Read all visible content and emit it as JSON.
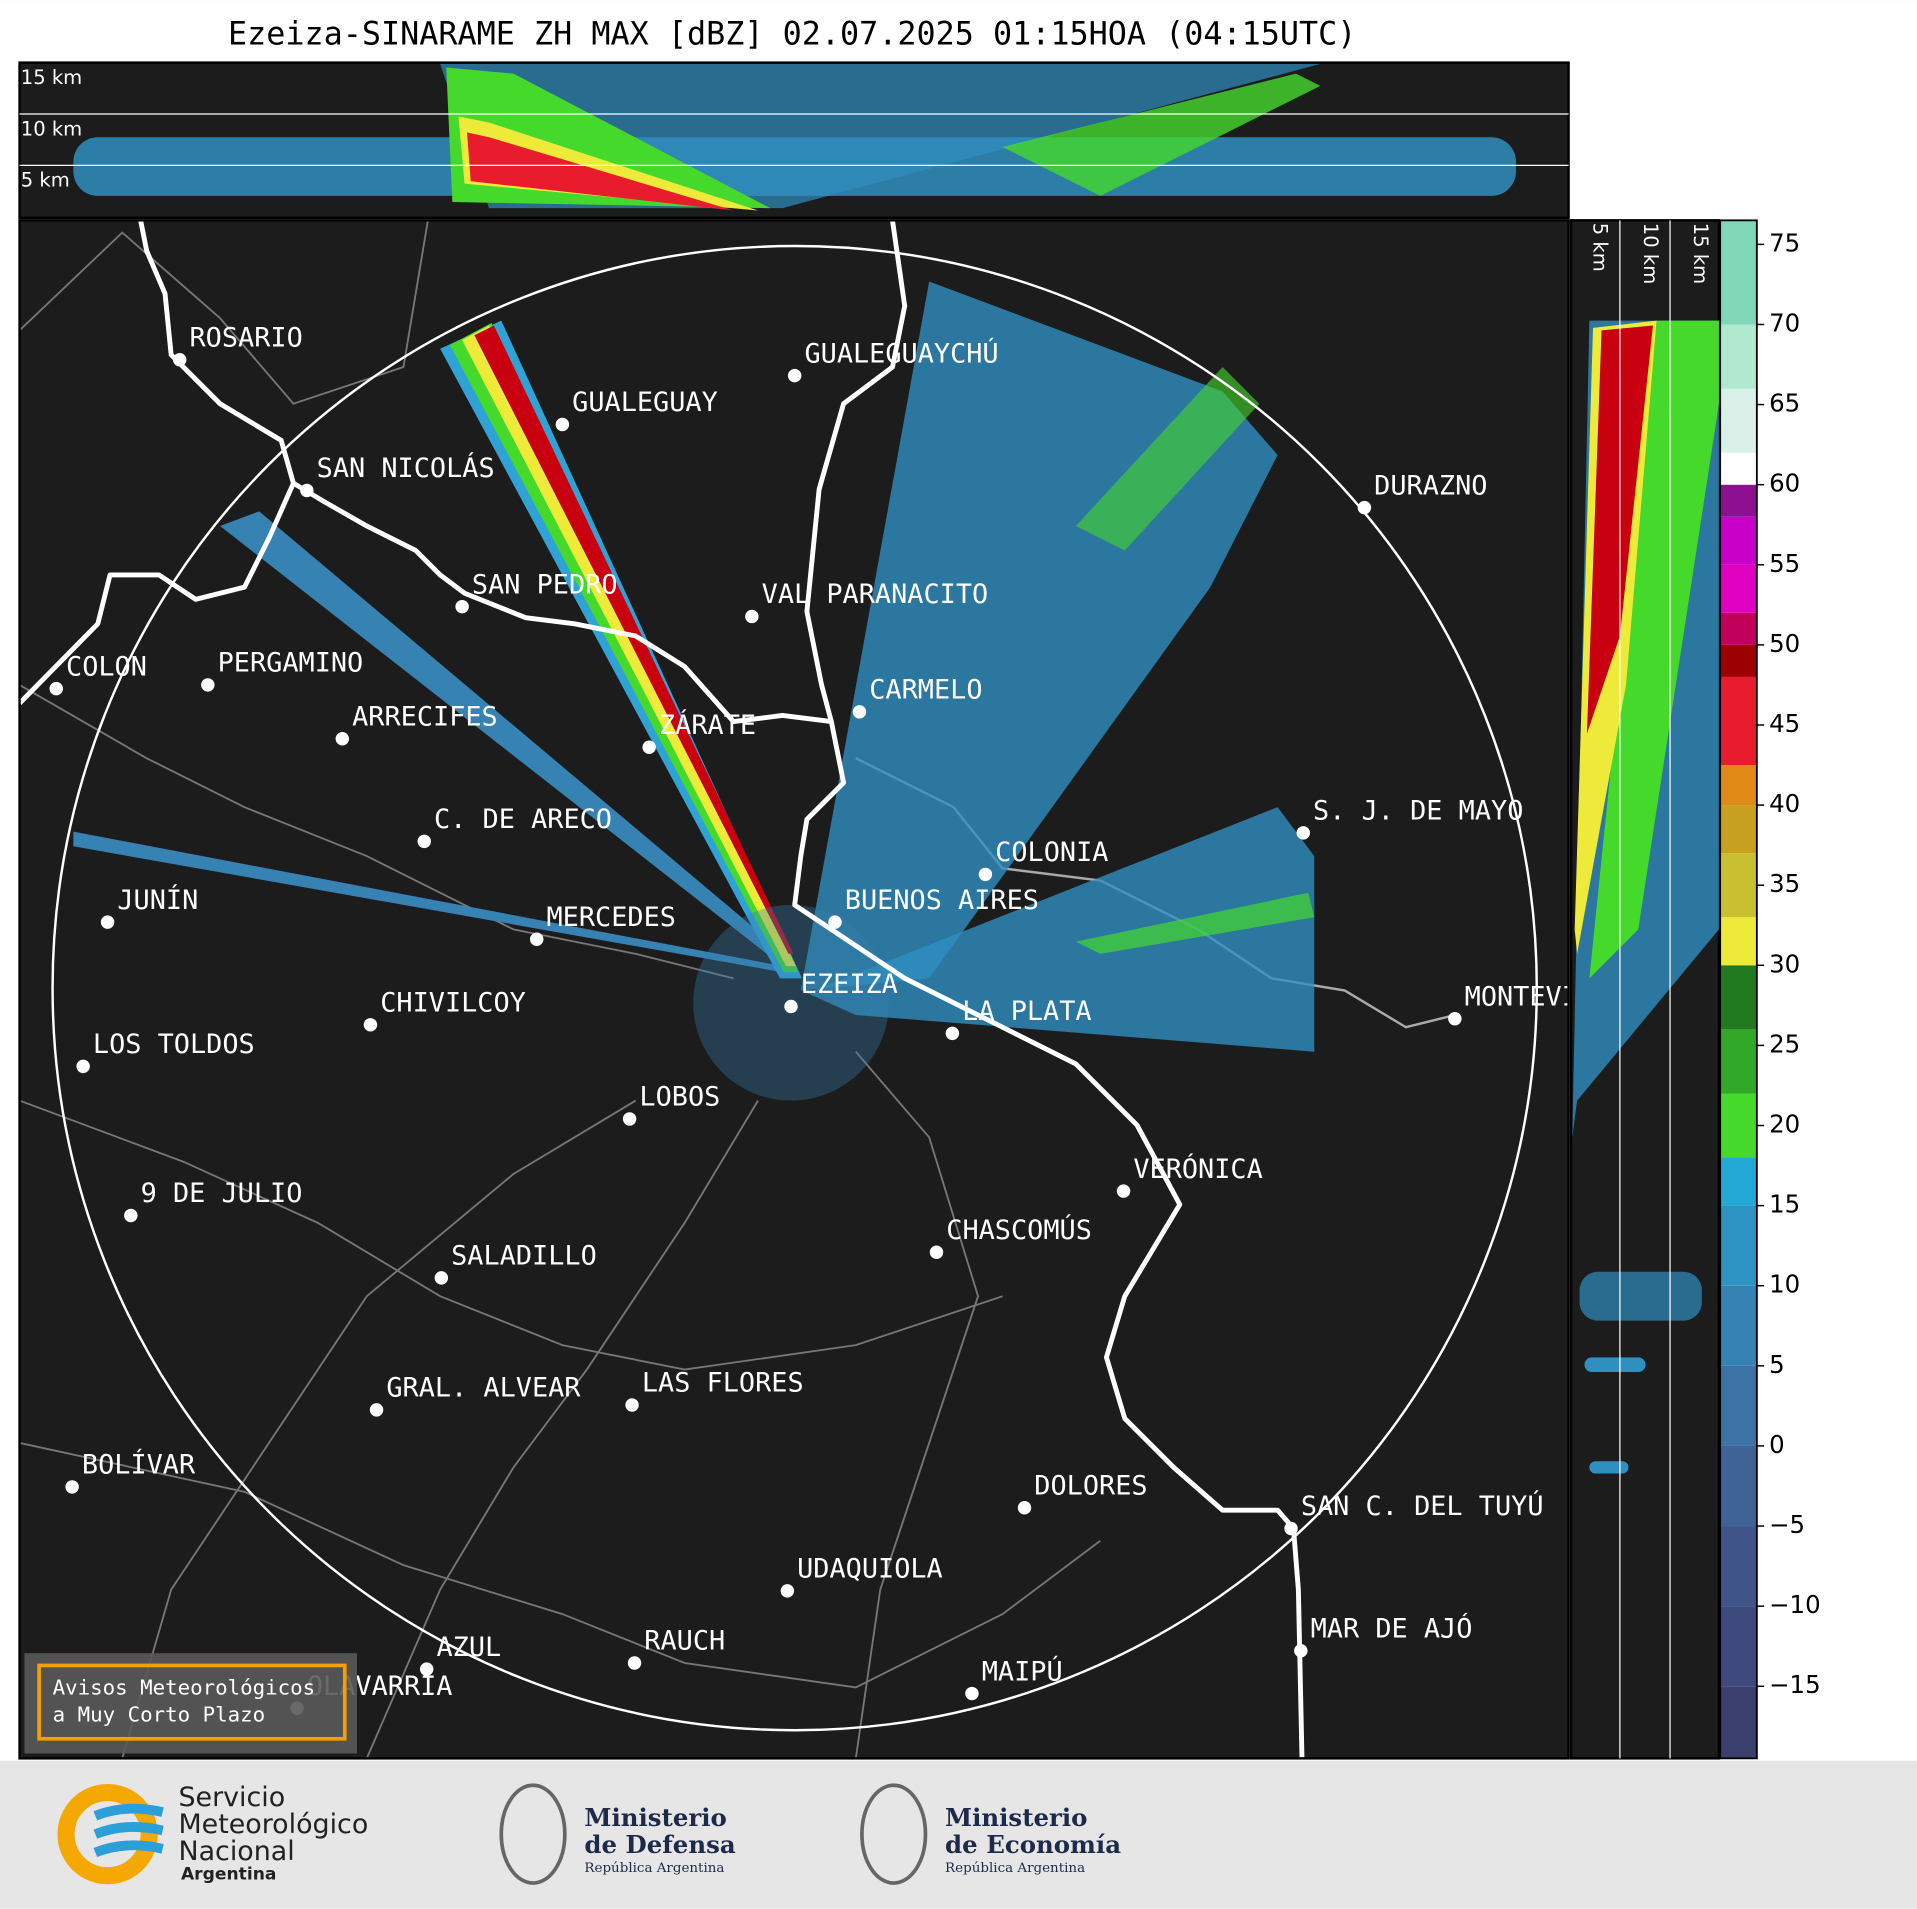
{
  "header": {
    "title": "Ezeiza-SINARAME ZH MAX [dBZ] 02.07.2025 01:15HOA (04:15UTC)"
  },
  "cross_sections": {
    "top_labels": [
      "15 km",
      "10 km",
      "5 km"
    ],
    "right_labels": [
      "5 km",
      "10 km",
      "15 km"
    ]
  },
  "map": {
    "cities": [
      "ROSARIO",
      "GUALEGUAYCHÚ",
      "GUALEGUAY",
      "SAN NICOLÁS",
      "DURAZNO",
      "SAN PEDRO",
      "VAL PARANACITO",
      "COLON",
      "PERGAMINO",
      "CARMELO",
      "ARRECIFES",
      "ZÁRATE",
      "C. DE ARECO",
      "S. J. DE MAYO",
      "COLONIA",
      "JUNÍN",
      "BUENOS AIRES",
      "MERCEDES",
      "EZEIZA",
      "MONTEVIDEO",
      "CHIVILCOY",
      "LA PLATA",
      "LOS TOLDOS",
      "LOBOS",
      "VERÓNICA",
      "9 DE JULIO",
      "CHASCOMÚS",
      "SALADILLO",
      "GRAL. ALVEAR",
      "LAS FLORES",
      "BOLÍVAR",
      "DOLORES",
      "SAN C. DEL TUYÚ",
      "UDAQUIOLA",
      "MAR DE AJÓ",
      "RAUCH",
      "AZUL",
      "OLAVARRÍA",
      "MAIPÚ"
    ]
  },
  "colorbar": {
    "lim": [
      -19.5,
      76.5
    ],
    "ticks": [
      {
        "value": -15,
        "label": "−15"
      },
      {
        "value": -10,
        "label": "−10"
      },
      {
        "value": -5,
        "label": "−5"
      },
      0,
      5,
      10,
      15,
      20,
      25,
      30,
      35,
      40,
      45,
      50,
      55,
      60,
      65,
      70,
      75
    ],
    "edges": [
      -19.5,
      -15,
      -10,
      -5,
      0,
      5,
      10,
      15,
      18,
      22,
      26,
      30,
      33,
      37,
      40,
      42.5,
      48,
      50,
      52,
      55,
      58,
      60,
      62,
      66,
      70,
      76.5
    ],
    "colors": [
      "#3a3f6e",
      "#3d4a7d",
      "#3f5589",
      "#3f6397",
      "#3c72a5",
      "#3682b3",
      "#2d93c2",
      "#22a9d6",
      "#45d92c",
      "#32a828",
      "#217a1f",
      "#eeea3a",
      "#c8c030",
      "#c8a020",
      "#e08a18",
      "#e81c2c",
      "#9c0000",
      "#c0005a",
      "#e000c0",
      "#c800c8",
      "#8c1090",
      "#ffffff",
      "#d8f0e8",
      "#b0e8d0",
      "#80d8b8"
    ]
  },
  "warning_box": {
    "lines": [
      "Avisos Meteorológicos",
      "a Muy Corto Plazo"
    ]
  },
  "footer": {
    "smn": {
      "lines": [
        "Servicio",
        "Meteorológico",
        "Nacional"
      ],
      "country": "Argentina"
    },
    "defensa": {
      "lines": [
        "Ministerio",
        "de Defensa"
      ],
      "country": "República Argentina"
    },
    "economia": {
      "lines": [
        "Ministerio",
        "de Economía"
      ],
      "country": "República Argentina"
    }
  }
}
